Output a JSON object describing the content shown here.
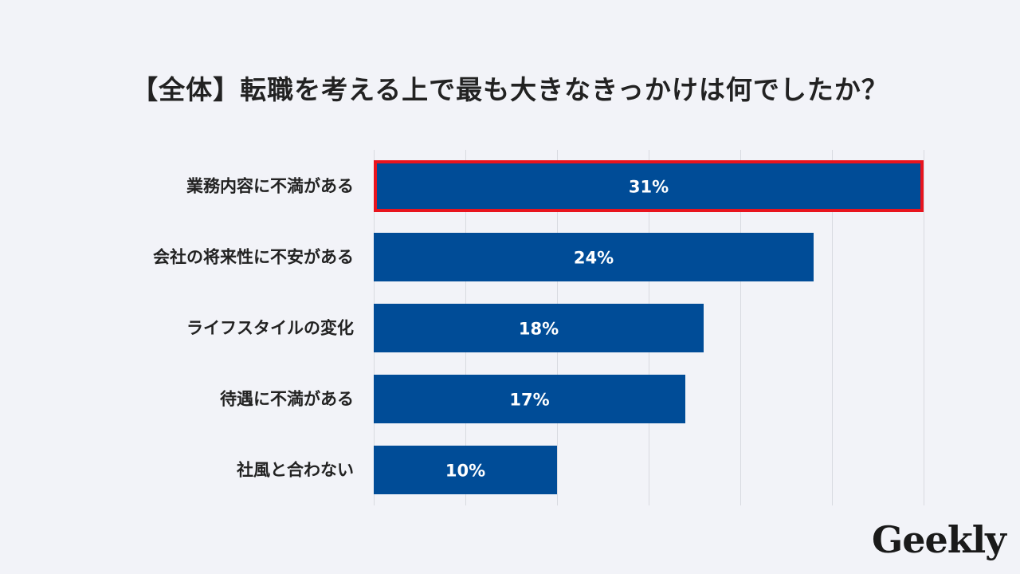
{
  "chart_data": {
    "type": "bar",
    "orientation": "horizontal",
    "title": "【全体】転職を考える上で最も大きなきっかけは何でしたか？",
    "categories": [
      "業務内容に不満がある",
      "会社の将来性に不安がある",
      "ライフスタイルの変化",
      "待遇に不満がある",
      "社風と合わない"
    ],
    "values": [
      31,
      24,
      18,
      17,
      10
    ],
    "value_labels": [
      "31%",
      "24%",
      "18%",
      "17%",
      "10%"
    ],
    "highlighted": [
      0
    ],
    "xlim": [
      0,
      30
    ],
    "grid": true,
    "grid_step": 5,
    "colors": {
      "bar": "#004c97",
      "highlight": "#e8141e",
      "grid": "#d8dae0"
    }
  },
  "logo": "Geekly"
}
